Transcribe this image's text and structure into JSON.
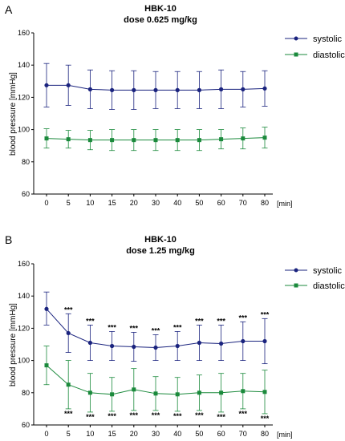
{
  "chart_data": [
    {
      "panel": "A",
      "type": "line",
      "title": "HBK-10",
      "subtitle": "dose 0.625 mg/kg",
      "xlabel": "[min]",
      "ylabel": "blood pressure [mmHg]",
      "ylim": [
        60,
        160
      ],
      "yticks": [
        "60",
        "80",
        "100",
        "120",
        "140",
        "160"
      ],
      "categories": [
        "0",
        "5",
        "10",
        "15",
        "20",
        "30",
        "40",
        "50",
        "60",
        "70",
        "80"
      ],
      "grid": false,
      "legend_position": "top-right",
      "series": [
        {
          "name": "systolic",
          "color": "#1a237e",
          "marker": "circle",
          "values": [
            127.5,
            127.5,
            125,
            124.5,
            124.5,
            124.5,
            124.5,
            124.5,
            125,
            125,
            125.5
          ],
          "err_upper": [
            141,
            140,
            137,
            136.5,
            136.5,
            136,
            136,
            136,
            137,
            136,
            136.5
          ],
          "err_lower": [
            114,
            115,
            113,
            112.5,
            112.5,
            113,
            113,
            113,
            113,
            114,
            114.5
          ],
          "sig_above": [
            "",
            "",
            "",
            "",
            "",
            "",
            "",
            "",
            "",
            "",
            ""
          ]
        },
        {
          "name": "diastolic",
          "color": "#1b8a3c",
          "marker": "square",
          "values": [
            94.5,
            94,
            93.5,
            93.5,
            93.5,
            93.5,
            93.5,
            93.5,
            94,
            94.5,
            95
          ],
          "err_upper": [
            100.5,
            99.5,
            99.5,
            100,
            100,
            100,
            100,
            100,
            100,
            101,
            101.5
          ],
          "err_lower": [
            88.5,
            88.5,
            87.5,
            87,
            87,
            87,
            87,
            87,
            88,
            88,
            88.5
          ],
          "sig_below": [
            "",
            "",
            "",
            "",
            "",
            "",
            "",
            "",
            "",
            "",
            ""
          ]
        }
      ]
    },
    {
      "panel": "B",
      "type": "line",
      "title": "HBK-10",
      "subtitle": "dose 1.25 mg/kg",
      "xlabel": "[min]",
      "ylabel": "blood pressure [mmHg]",
      "ylim": [
        60,
        160
      ],
      "yticks": [
        "60",
        "80",
        "100",
        "120",
        "140",
        "160"
      ],
      "categories": [
        "0",
        "5",
        "10",
        "15",
        "20",
        "30",
        "40",
        "50",
        "60",
        "70",
        "80"
      ],
      "grid": false,
      "legend_position": "top-right",
      "series": [
        {
          "name": "systolic",
          "color": "#1a237e",
          "marker": "circle",
          "values": [
            132,
            117,
            111,
            109,
            108.5,
            108,
            109,
            111,
            110.5,
            112,
            112
          ],
          "err_upper": [
            142.5,
            129,
            122,
            118,
            117.5,
            116,
            118,
            122,
            122,
            124,
            126
          ],
          "err_lower": [
            122,
            105,
            100,
            100,
            99.5,
            100,
            100,
            100,
            100,
            100,
            98
          ],
          "sig_above": [
            "",
            "***",
            "***",
            "***",
            "***",
            "***",
            "***",
            "***",
            "***",
            "***",
            "***"
          ]
        },
        {
          "name": "diastolic",
          "color": "#1b8a3c",
          "marker": "square",
          "values": [
            97,
            85,
            80,
            79,
            82,
            79.5,
            79,
            80,
            80,
            81,
            80.5
          ],
          "err_upper": [
            109,
            100,
            92,
            89.5,
            95,
            90,
            89.5,
            91,
            92,
            92,
            94
          ],
          "err_lower": [
            85,
            70,
            68,
            68.5,
            69,
            69,
            68.5,
            69,
            68,
            70,
            67
          ],
          "sig_below": [
            "",
            "***",
            "***",
            "***",
            "***",
            "***",
            "***",
            "***",
            "***",
            "***",
            "***"
          ]
        }
      ]
    }
  ]
}
